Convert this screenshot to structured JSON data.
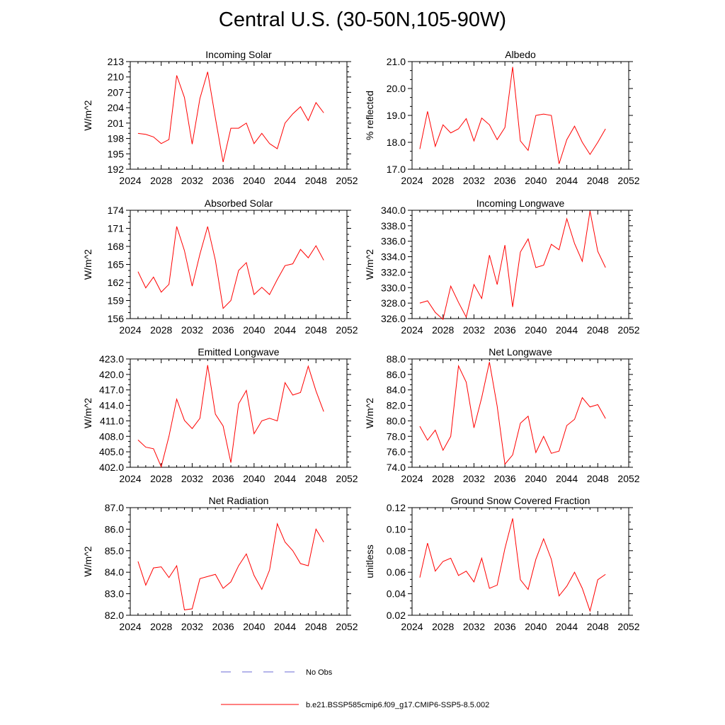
{
  "title": "Central U.S. (30-50N,105-90W)",
  "legend": {
    "entries": [
      {
        "label": "No Obs",
        "color": "#6b6bd6",
        "style": "dashed"
      },
      {
        "label": "b.e21.BSSP585cmip6.f09_g17.CMIP6-SSP5-8.5.002",
        "color": "#ff0000",
        "style": "solid"
      }
    ]
  },
  "chart_data": [
    {
      "type": "line",
      "title": "Incoming Solar",
      "ylabel": "W/m^2",
      "xlim": [
        2024,
        2052
      ],
      "ylim": [
        192,
        213
      ],
      "xticks": [
        2024,
        2028,
        2032,
        2036,
        2040,
        2044,
        2048,
        2052
      ],
      "yticks": [
        192,
        195,
        198,
        201,
        204,
        207,
        210,
        213
      ],
      "ytick_labels": [
        "192",
        "195",
        "198",
        "201",
        "204",
        "207",
        "210",
        "213"
      ],
      "x": [
        2025,
        2026,
        2027,
        2028,
        2029,
        2030,
        2031,
        2032,
        2033,
        2034,
        2035,
        2036,
        2037,
        2038,
        2039,
        2040,
        2041,
        2042,
        2043,
        2044,
        2045,
        2046,
        2047,
        2048,
        2049
      ],
      "series": [
        {
          "name": "b.e21.BSSP585cmip6.f09_g17.CMIP6-SSP5-8.5.002",
          "values": [
            199.0,
            198.8,
            198.3,
            197.0,
            197.8,
            210.3,
            206.0,
            196.9,
            205.8,
            211.0,
            202.0,
            193.4,
            200.0,
            200.0,
            201.0,
            197.0,
            199.0,
            197.0,
            196.0,
            201.0,
            202.8,
            204.2,
            201.5,
            205.0,
            203.0
          ]
        }
      ]
    },
    {
      "type": "line",
      "title": "Albedo",
      "ylabel": "% reflected",
      "xlim": [
        2024,
        2052
      ],
      "ylim": [
        17.0,
        21.0
      ],
      "xticks": [
        2024,
        2028,
        2032,
        2036,
        2040,
        2044,
        2048,
        2052
      ],
      "yticks": [
        17,
        18,
        19,
        20,
        21
      ],
      "ytick_labels": [
        "17.0",
        "18.0",
        "19.0",
        "20.0",
        "21.0"
      ],
      "x": [
        2025,
        2026,
        2027,
        2028,
        2029,
        2030,
        2031,
        2032,
        2033,
        2034,
        2035,
        2036,
        2037,
        2038,
        2039,
        2040,
        2041,
        2042,
        2043,
        2044,
        2045,
        2046,
        2047,
        2048,
        2049
      ],
      "series": [
        {
          "name": "b.e21.BSSP585cmip6.f09_g17.CMIP6-SSP5-8.5.002",
          "values": [
            17.75,
            19.15,
            17.85,
            18.65,
            18.35,
            18.5,
            18.88,
            18.05,
            18.9,
            18.65,
            18.1,
            18.55,
            20.8,
            18.05,
            17.7,
            19.0,
            19.05,
            19.0,
            17.2,
            18.1,
            18.6,
            18.0,
            17.55,
            18.0,
            18.5
          ]
        }
      ]
    },
    {
      "type": "line",
      "title": "Absorbed Solar",
      "ylabel": "W/m^2",
      "xlim": [
        2024,
        2052
      ],
      "ylim": [
        156,
        174
      ],
      "xticks": [
        2024,
        2028,
        2032,
        2036,
        2040,
        2044,
        2048,
        2052
      ],
      "yticks": [
        156,
        159,
        162,
        165,
        168,
        171,
        174
      ],
      "ytick_labels": [
        "156",
        "159",
        "162",
        "165",
        "168",
        "171",
        "174"
      ],
      "x": [
        2025,
        2026,
        2027,
        2028,
        2029,
        2030,
        2031,
        2032,
        2033,
        2034,
        2035,
        2036,
        2037,
        2038,
        2039,
        2040,
        2041,
        2042,
        2043,
        2044,
        2045,
        2046,
        2047,
        2048,
        2049
      ],
      "series": [
        {
          "name": "b.e21.BSSP585cmip6.f09_g17.CMIP6-SSP5-8.5.002",
          "values": [
            163.8,
            161.1,
            162.9,
            160.4,
            161.7,
            171.3,
            167.3,
            161.4,
            166.7,
            171.3,
            165.7,
            157.7,
            159.0,
            164.0,
            165.3,
            160.0,
            161.2,
            160.0,
            162.5,
            164.8,
            165.1,
            167.5,
            166.1,
            168.1,
            165.7
          ]
        }
      ]
    },
    {
      "type": "line",
      "title": "Incoming Longwave",
      "ylabel": "W/m^2",
      "xlim": [
        2024,
        2052
      ],
      "ylim": [
        326.0,
        340.0
      ],
      "xticks": [
        2024,
        2028,
        2032,
        2036,
        2040,
        2044,
        2048,
        2052
      ],
      "yticks": [
        326,
        328,
        330,
        332,
        334,
        336,
        338,
        340
      ],
      "ytick_labels": [
        "326.0",
        "328.0",
        "330.0",
        "332.0",
        "334.0",
        "336.0",
        "338.0",
        "340.0"
      ],
      "x": [
        2025,
        2026,
        2027,
        2028,
        2029,
        2030,
        2031,
        2032,
        2033,
        2034,
        2035,
        2036,
        2037,
        2038,
        2039,
        2040,
        2041,
        2042,
        2043,
        2044,
        2045,
        2046,
        2047,
        2048,
        2049
      ],
      "series": [
        {
          "name": "b.e21.BSSP585cmip6.f09_g17.CMIP6-SSP5-8.5.002",
          "values": [
            328.0,
            328.3,
            326.8,
            325.9,
            330.2,
            328.1,
            326.2,
            330.4,
            328.6,
            334.2,
            330.4,
            335.5,
            327.5,
            334.6,
            336.3,
            332.6,
            332.9,
            335.6,
            334.9,
            338.9,
            335.7,
            333.4,
            339.9,
            334.7,
            332.6
          ]
        }
      ]
    },
    {
      "type": "line",
      "title": "Emitted Longwave",
      "ylabel": "W/m^2",
      "xlim": [
        2024,
        2052
      ],
      "ylim": [
        402.0,
        423.0
      ],
      "xticks": [
        2024,
        2028,
        2032,
        2036,
        2040,
        2044,
        2048,
        2052
      ],
      "yticks": [
        402,
        405,
        408,
        411,
        414,
        417,
        420,
        423
      ],
      "ytick_labels": [
        "402.0",
        "405.0",
        "408.0",
        "411.0",
        "414.0",
        "417.0",
        "420.0",
        "423.0"
      ],
      "x": [
        2025,
        2026,
        2027,
        2028,
        2029,
        2030,
        2031,
        2032,
        2033,
        2034,
        2035,
        2036,
        2037,
        2038,
        2039,
        2040,
        2041,
        2042,
        2043,
        2044,
        2045,
        2046,
        2047,
        2048,
        2049
      ],
      "series": [
        {
          "name": "b.e21.BSSP585cmip6.f09_g17.CMIP6-SSP5-8.5.002",
          "values": [
            407.3,
            405.9,
            405.6,
            402.1,
            408.0,
            415.2,
            411.1,
            409.5,
            411.5,
            421.8,
            412.3,
            410.0,
            402.9,
            414.3,
            416.9,
            408.5,
            411.0,
            411.5,
            411.0,
            418.4,
            416.0,
            416.5,
            421.6,
            416.8,
            412.8
          ]
        }
      ]
    },
    {
      "type": "line",
      "title": "Net Longwave",
      "ylabel": "W/m^2",
      "xlim": [
        2024,
        2052
      ],
      "ylim": [
        74.0,
        88.0
      ],
      "xticks": [
        2024,
        2028,
        2032,
        2036,
        2040,
        2044,
        2048,
        2052
      ],
      "yticks": [
        74,
        76,
        78,
        80,
        82,
        84,
        86,
        88
      ],
      "ytick_labels": [
        "74.0",
        "76.0",
        "78.0",
        "80.0",
        "82.0",
        "84.0",
        "86.0",
        "88.0"
      ],
      "x": [
        2025,
        2026,
        2027,
        2028,
        2029,
        2030,
        2031,
        2032,
        2033,
        2034,
        2035,
        2036,
        2037,
        2038,
        2039,
        2040,
        2041,
        2042,
        2043,
        2044,
        2045,
        2046,
        2047,
        2048,
        2049
      ],
      "series": [
        {
          "name": "b.e21.BSSP585cmip6.f09_g17.CMIP6-SSP5-8.5.002",
          "values": [
            79.3,
            77.5,
            78.8,
            76.2,
            78.0,
            87.1,
            85.0,
            79.1,
            83.0,
            87.6,
            81.9,
            74.4,
            75.6,
            79.7,
            80.6,
            75.9,
            78.0,
            75.8,
            76.1,
            79.4,
            80.2,
            83.0,
            81.8,
            82.1,
            80.3
          ]
        }
      ]
    },
    {
      "type": "line",
      "title": "Net Radiation",
      "ylabel": "W/m^2",
      "xlim": [
        2024,
        2052
      ],
      "ylim": [
        82.0,
        87.0
      ],
      "xticks": [
        2024,
        2028,
        2032,
        2036,
        2040,
        2044,
        2048,
        2052
      ],
      "yticks": [
        82,
        83,
        84,
        85,
        86,
        87
      ],
      "ytick_labels": [
        "82.0",
        "83.0",
        "84.0",
        "85.0",
        "86.0",
        "87.0"
      ],
      "x": [
        2025,
        2026,
        2027,
        2028,
        2029,
        2030,
        2031,
        2032,
        2033,
        2034,
        2035,
        2036,
        2037,
        2038,
        2039,
        2040,
        2041,
        2042,
        2043,
        2044,
        2045,
        2046,
        2047,
        2048,
        2049
      ],
      "series": [
        {
          "name": "b.e21.BSSP585cmip6.f09_g17.CMIP6-SSP5-8.5.002",
          "values": [
            84.5,
            83.4,
            84.2,
            84.25,
            83.75,
            84.3,
            82.25,
            82.3,
            83.7,
            83.8,
            83.9,
            83.25,
            83.55,
            84.3,
            84.85,
            83.85,
            83.2,
            84.1,
            86.25,
            85.4,
            85.0,
            84.4,
            84.3,
            86.0,
            85.4
          ]
        }
      ]
    },
    {
      "type": "line",
      "title": "Ground Snow Covered Fraction",
      "ylabel": "unitless",
      "xlim": [
        2024,
        2052
      ],
      "ylim": [
        0.02,
        0.12
      ],
      "xticks": [
        2024,
        2028,
        2032,
        2036,
        2040,
        2044,
        2048,
        2052
      ],
      "yticks": [
        0.02,
        0.04,
        0.06,
        0.08,
        0.1,
        0.12
      ],
      "ytick_labels": [
        "0.02",
        "0.04",
        "0.06",
        "0.08",
        "0.10",
        "0.12"
      ],
      "x": [
        2025,
        2026,
        2027,
        2028,
        2029,
        2030,
        2031,
        2032,
        2033,
        2034,
        2035,
        2036,
        2037,
        2038,
        2039,
        2040,
        2041,
        2042,
        2043,
        2044,
        2045,
        2046,
        2047,
        2048,
        2049
      ],
      "series": [
        {
          "name": "b.e21.BSSP585cmip6.f09_g17.CMIP6-SSP5-8.5.002",
          "values": [
            0.055,
            0.087,
            0.061,
            0.07,
            0.073,
            0.057,
            0.061,
            0.051,
            0.073,
            0.045,
            0.048,
            0.082,
            0.11,
            0.053,
            0.044,
            0.072,
            0.091,
            0.072,
            0.038,
            0.047,
            0.06,
            0.045,
            0.024,
            0.053,
            0.058
          ]
        }
      ]
    }
  ]
}
